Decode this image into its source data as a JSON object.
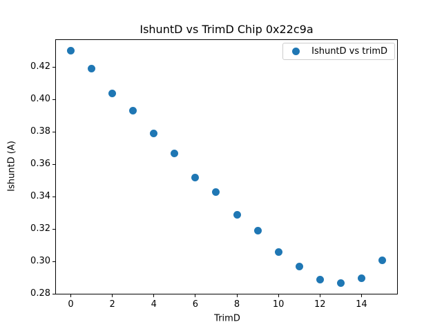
{
  "chart_data": {
    "type": "scatter",
    "title": "IshuntD vs TrimD Chip 0x22c9a",
    "xlabel": "TrimD",
    "ylabel": "IshuntD (A)",
    "legend": [
      "IshuntD vs trimD"
    ],
    "legend_position": "upper right",
    "marker_color": "#1f77b4",
    "grid": false,
    "x": [
      0,
      1,
      2,
      3,
      4,
      5,
      6,
      7,
      8,
      9,
      10,
      11,
      12,
      13,
      14,
      15
    ],
    "y": [
      0.43,
      0.419,
      0.404,
      0.393,
      0.379,
      0.367,
      0.352,
      0.343,
      0.329,
      0.319,
      0.306,
      0.297,
      0.289,
      0.287,
      0.29,
      0.301
    ],
    "xlim": [
      -0.75,
      15.75
    ],
    "ylim": [
      0.2798,
      0.4372
    ],
    "xticks": [
      0,
      2,
      4,
      6,
      8,
      10,
      12,
      14
    ],
    "yticks": [
      0.28,
      0.3,
      0.32,
      0.34,
      0.36,
      0.38,
      0.4,
      0.42
    ]
  }
}
